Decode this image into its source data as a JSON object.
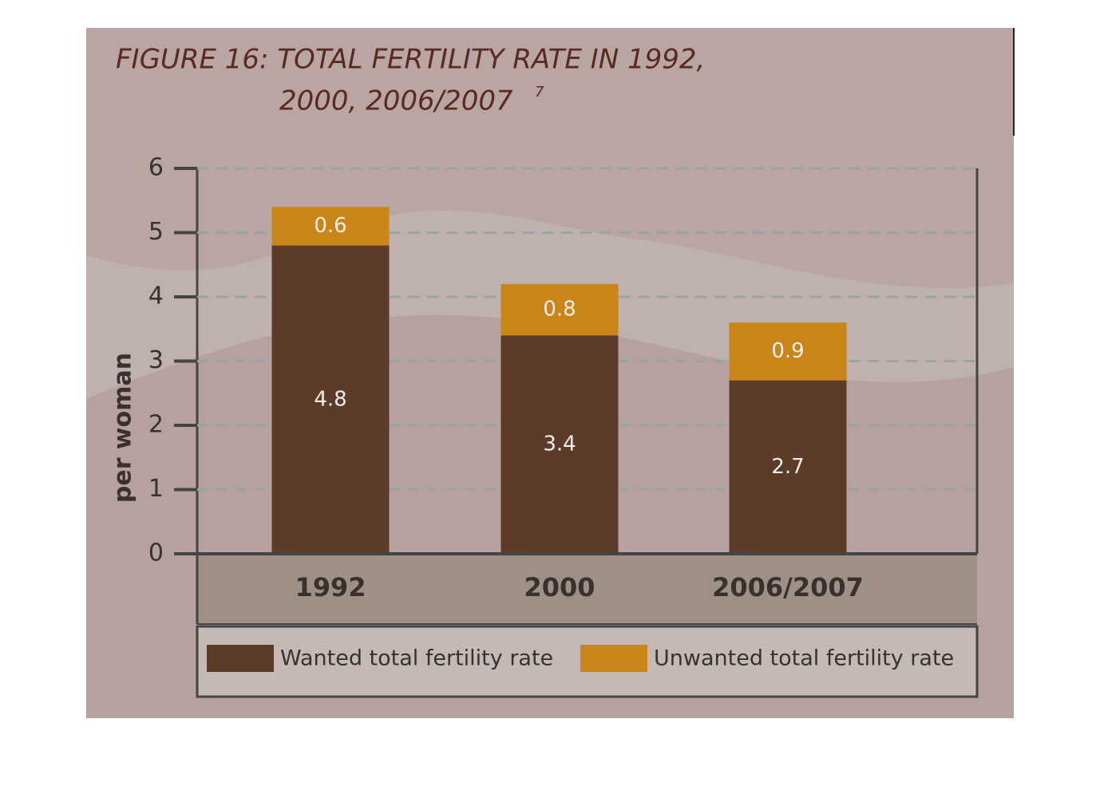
{
  "chart_data": {
    "type": "stacked_bar",
    "title": [
      "FIGURE 16: TOTAL FERTILITY RATE IN 1992,",
      "2000, 2006/2007"
    ],
    "title_note": "7",
    "ylabel": "per woman",
    "categories": [
      "1992",
      "2000",
      "2006/2007"
    ],
    "series": [
      {
        "name": "Wanted total fertility rate",
        "color": "#5c3b29",
        "values": [
          4.8,
          3.4,
          2.7
        ]
      },
      {
        "name": "Unwanted total fertility rate",
        "color": "#c98518",
        "values": [
          0.6,
          0.8,
          0.9
        ]
      }
    ],
    "ylim": [
      0,
      6
    ],
    "yticks": [
      0,
      1,
      2,
      3,
      4,
      5,
      6
    ],
    "grid": true
  }
}
